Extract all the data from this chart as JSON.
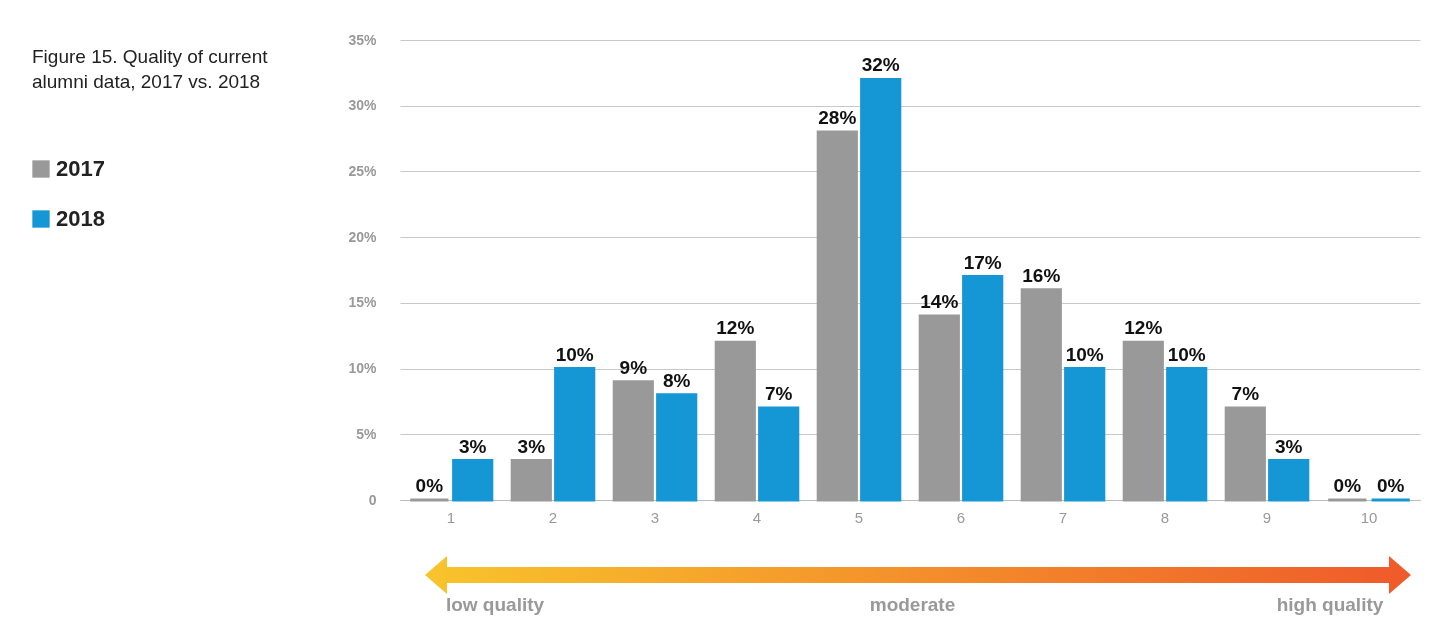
{
  "chart_data": {
    "type": "bar",
    "title": "Figure 15.  Quality of current alumni data, 2017 vs. 2018",
    "categories": [
      "1",
      "2",
      "3",
      "4",
      "5",
      "6",
      "7",
      "8",
      "9",
      "10"
    ],
    "series": [
      {
        "name": "2017",
        "color": "#999999",
        "values": [
          0,
          3,
          9,
          12,
          28,
          14,
          16,
          12,
          7,
          0
        ],
        "value_labels": [
          "0%",
          "3%",
          "9%",
          "12%",
          "28%",
          "14%",
          "16%",
          "12%",
          "7%",
          "0%"
        ]
      },
      {
        "name": "2018",
        "color": "#1497d4",
        "values": [
          3,
          10,
          8,
          7,
          32,
          17,
          10,
          10,
          3,
          0
        ],
        "value_labels": [
          "3%",
          "10%",
          "8%",
          "7%",
          "32%",
          "17%",
          "10%",
          "10%",
          "3%",
          "0%"
        ]
      }
    ],
    "ylim": [
      0,
      35
    ],
    "yticks": [
      0,
      {
        "value": 5,
        "label": "5%"
      },
      {
        "value": 10,
        "label": "10%"
      },
      {
        "value": 15,
        "label": "15%"
      },
      {
        "value": 20,
        "label": "20%"
      },
      {
        "value": 25,
        "label": "25%"
      },
      {
        "value": 30,
        "label": "30%"
      },
      {
        "value": 35,
        "label": "35%"
      }
    ],
    "grid": "y",
    "legend": "left",
    "annotations": [
      "low quality",
      "moderate",
      "high quality"
    ]
  }
}
